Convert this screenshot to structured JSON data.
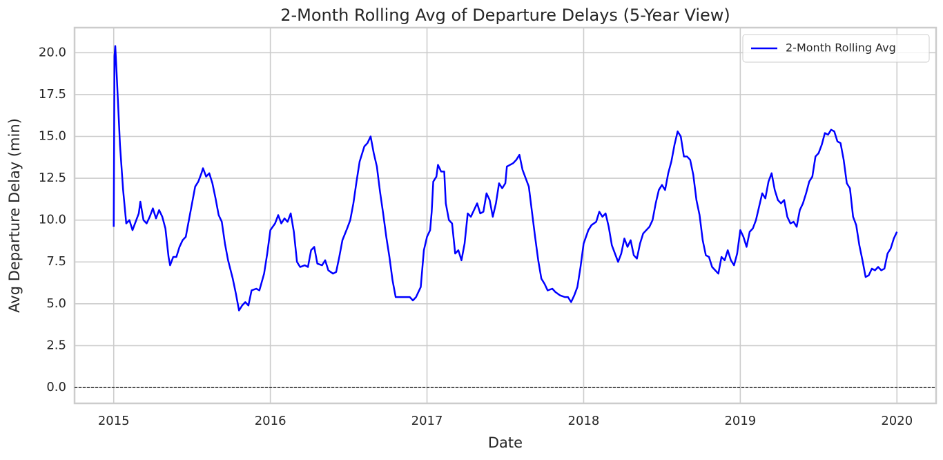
{
  "chart_data": {
    "type": "line",
    "title": "2-Month Rolling Avg of Departure Delays (5-Year View)",
    "xlabel": "Date",
    "ylabel": "Avg Departure Delay (min)",
    "x": [
      2015.0,
      2015.005,
      2015.01,
      2015.02,
      2015.025,
      2015.04,
      2015.06,
      2015.08,
      2015.1,
      2015.12,
      2015.14,
      2015.16,
      2015.17,
      2015.19,
      2015.21,
      2015.23,
      2015.25,
      2015.27,
      2015.29,
      2015.31,
      2015.33,
      2015.35,
      2015.36,
      2015.38,
      2015.4,
      2015.42,
      2015.44,
      2015.46,
      2015.48,
      2015.5,
      2015.52,
      2015.54,
      2015.56,
      2015.57,
      2015.59,
      2015.61,
      2015.63,
      2015.65,
      2015.67,
      2015.69,
      2015.71,
      2015.73,
      2015.76,
      2015.78,
      2015.8,
      2015.82,
      2015.84,
      2015.86,
      2015.88,
      2015.91,
      2015.93,
      2015.96,
      2015.98,
      2016.0,
      2016.03,
      2016.05,
      2016.07,
      2016.09,
      2016.11,
      2016.13,
      2016.15,
      2016.17,
      2016.19,
      2016.22,
      2016.24,
      2016.26,
      2016.28,
      2016.3,
      2016.33,
      2016.35,
      2016.37,
      2016.4,
      2016.42,
      2016.44,
      2016.46,
      2016.49,
      2016.51,
      2016.53,
      2016.55,
      2016.57,
      2016.6,
      2016.62,
      2016.64,
      2016.66,
      2016.68,
      2016.7,
      2016.72,
      2016.74,
      2016.76,
      2016.78,
      2016.8,
      2016.83,
      2016.86,
      2016.89,
      2016.91,
      2016.93,
      2016.96,
      2016.98,
      2017.0,
      2017.02,
      2017.03,
      2017.04,
      2017.06,
      2017.07,
      2017.09,
      2017.11,
      2017.12,
      2017.14,
      2017.16,
      2017.18,
      2017.2,
      2017.22,
      2017.24,
      2017.26,
      2017.28,
      2017.3,
      2017.32,
      2017.34,
      2017.36,
      2017.38,
      2017.4,
      2017.42,
      2017.44,
      2017.46,
      2017.48,
      2017.5,
      2017.51,
      2017.53,
      2017.55,
      2017.57,
      2017.59,
      2017.61,
      2017.63,
      2017.65,
      2017.67,
      2017.69,
      2017.71,
      2017.73,
      2017.75,
      2017.77,
      2017.8,
      2017.82,
      2017.85,
      2017.88,
      2017.9,
      2017.92,
      2017.94,
      2017.96,
      2017.98,
      2018.0,
      2018.03,
      2018.05,
      2018.08,
      2018.1,
      2018.12,
      2018.14,
      2018.16,
      2018.18,
      2018.2,
      2018.22,
      2018.24,
      2018.26,
      2018.28,
      2018.3,
      2018.32,
      2018.34,
      2018.36,
      2018.38,
      2018.4,
      2018.42,
      2018.44,
      2018.46,
      2018.48,
      2018.5,
      2018.52,
      2018.54,
      2018.56,
      2018.58,
      2018.6,
      2018.62,
      2018.64,
      2018.66,
      2018.68,
      2018.7,
      2018.72,
      2018.74,
      2018.76,
      2018.78,
      2018.8,
      2018.82,
      2018.84,
      2018.86,
      2018.88,
      2018.9,
      2018.92,
      2018.94,
      2018.96,
      2018.98,
      2019.0,
      2019.02,
      2019.04,
      2019.06,
      2019.08,
      2019.1,
      2019.12,
      2019.14,
      2019.16,
      2019.18,
      2019.2,
      2019.22,
      2019.24,
      2019.26,
      2019.28,
      2019.3,
      2019.32,
      2019.34,
      2019.36,
      2019.38,
      2019.4,
      2019.42,
      2019.44,
      2019.46,
      2019.48,
      2019.5,
      2019.52,
      2019.54,
      2019.56,
      2019.58,
      2019.6,
      2019.62,
      2019.64,
      2019.66,
      2019.68,
      2019.7,
      2019.72,
      2019.74,
      2019.76,
      2019.78,
      2019.8,
      2019.82,
      2019.84,
      2019.86,
      2019.88,
      2019.9,
      2019.92,
      2019.94,
      2019.96,
      2019.98,
      2020.0
    ],
    "series": [
      {
        "name": "2-Month Rolling Avg",
        "color": "#0000ff",
        "values": [
          9.6,
          19.8,
          20.4,
          18.5,
          17.5,
          14.5,
          11.8,
          9.8,
          10.0,
          9.4,
          9.9,
          10.4,
          11.1,
          10.0,
          9.8,
          10.2,
          10.7,
          10.1,
          10.6,
          10.2,
          9.5,
          7.8,
          7.3,
          7.8,
          7.8,
          8.4,
          8.8,
          9.0,
          10.0,
          11.0,
          12.0,
          12.3,
          12.8,
          13.1,
          12.6,
          12.8,
          12.2,
          11.3,
          10.3,
          9.9,
          8.6,
          7.6,
          6.5,
          5.6,
          4.6,
          4.9,
          5.1,
          4.9,
          5.8,
          5.9,
          5.8,
          6.8,
          8.0,
          9.4,
          9.8,
          10.3,
          9.8,
          10.1,
          9.9,
          10.4,
          9.3,
          7.5,
          7.2,
          7.3,
          7.2,
          8.2,
          8.4,
          7.4,
          7.3,
          7.6,
          7.0,
          6.8,
          6.9,
          7.8,
          8.8,
          9.5,
          10.0,
          11.0,
          12.3,
          13.5,
          14.4,
          14.6,
          15.0,
          14.0,
          13.2,
          11.7,
          10.4,
          9.0,
          7.8,
          6.4,
          5.4,
          5.4,
          5.4,
          5.4,
          5.2,
          5.4,
          6.0,
          8.2,
          9.0,
          9.4,
          10.5,
          12.3,
          12.6,
          13.3,
          12.9,
          12.9,
          11.0,
          10.0,
          9.8,
          8.0,
          8.2,
          7.6,
          8.6,
          10.4,
          10.2,
          10.6,
          11.0,
          10.4,
          10.5,
          11.6,
          11.2,
          10.2,
          11.0,
          12.2,
          11.9,
          12.2,
          13.2,
          13.3,
          13.4,
          13.6,
          13.9,
          13.0,
          12.5,
          12.0,
          10.5,
          9.0,
          7.6,
          6.5,
          6.2,
          5.8,
          5.9,
          5.7,
          5.5,
          5.4,
          5.4,
          5.1,
          5.5,
          6.0,
          7.2,
          8.6,
          9.4,
          9.7,
          9.9,
          10.5,
          10.2,
          10.4,
          9.6,
          8.5,
          8.0,
          7.5,
          8.0,
          8.9,
          8.4,
          8.8,
          7.9,
          7.7,
          8.6,
          9.2,
          9.4,
          9.6,
          10.0,
          11.0,
          11.8,
          12.1,
          11.8,
          12.8,
          13.5,
          14.5,
          15.3,
          15.0,
          13.8,
          13.8,
          13.6,
          12.7,
          11.2,
          10.3,
          8.8,
          7.9,
          7.8,
          7.2,
          7.0,
          6.8,
          7.8,
          7.6,
          8.2,
          7.6,
          7.3,
          8.0,
          9.4,
          9.0,
          8.4,
          9.3,
          9.5,
          10.0,
          10.8,
          11.6,
          11.3,
          12.3,
          12.8,
          11.8,
          11.2,
          11.0,
          11.2,
          10.2,
          9.8,
          9.9,
          9.6,
          10.6,
          11.0,
          11.6,
          12.3,
          12.6,
          13.8,
          14.0,
          14.5,
          15.2,
          15.1,
          15.4,
          15.3,
          14.7,
          14.6,
          13.6,
          12.2,
          11.9,
          10.2,
          9.7,
          8.5,
          7.6,
          6.6,
          6.7,
          7.1,
          7.0,
          7.2,
          7.0,
          7.1,
          8.0,
          8.3,
          8.9,
          9.3
        ]
      }
    ],
    "xlim": [
      2014.75,
      2020.25
    ],
    "xticks": [
      2015,
      2016,
      2017,
      2018,
      2019,
      2020
    ],
    "ylim": [
      -0.95,
      21.5
    ],
    "yticks": [
      {
        "value": 0,
        "label": "0.0"
      },
      {
        "value": 2.5,
        "label": "2.5"
      },
      {
        "value": 5,
        "label": "5.0"
      },
      {
        "value": 7.5,
        "label": "7.5"
      },
      {
        "value": 10,
        "label": "10.0"
      },
      {
        "value": 12.5,
        "label": "12.5"
      },
      {
        "value": 15,
        "label": "15.0"
      },
      {
        "value": 17.5,
        "label": "17.5"
      },
      {
        "value": 20,
        "label": "20.0"
      }
    ],
    "reference_line": 0,
    "grid": true,
    "legend": "upper right"
  }
}
